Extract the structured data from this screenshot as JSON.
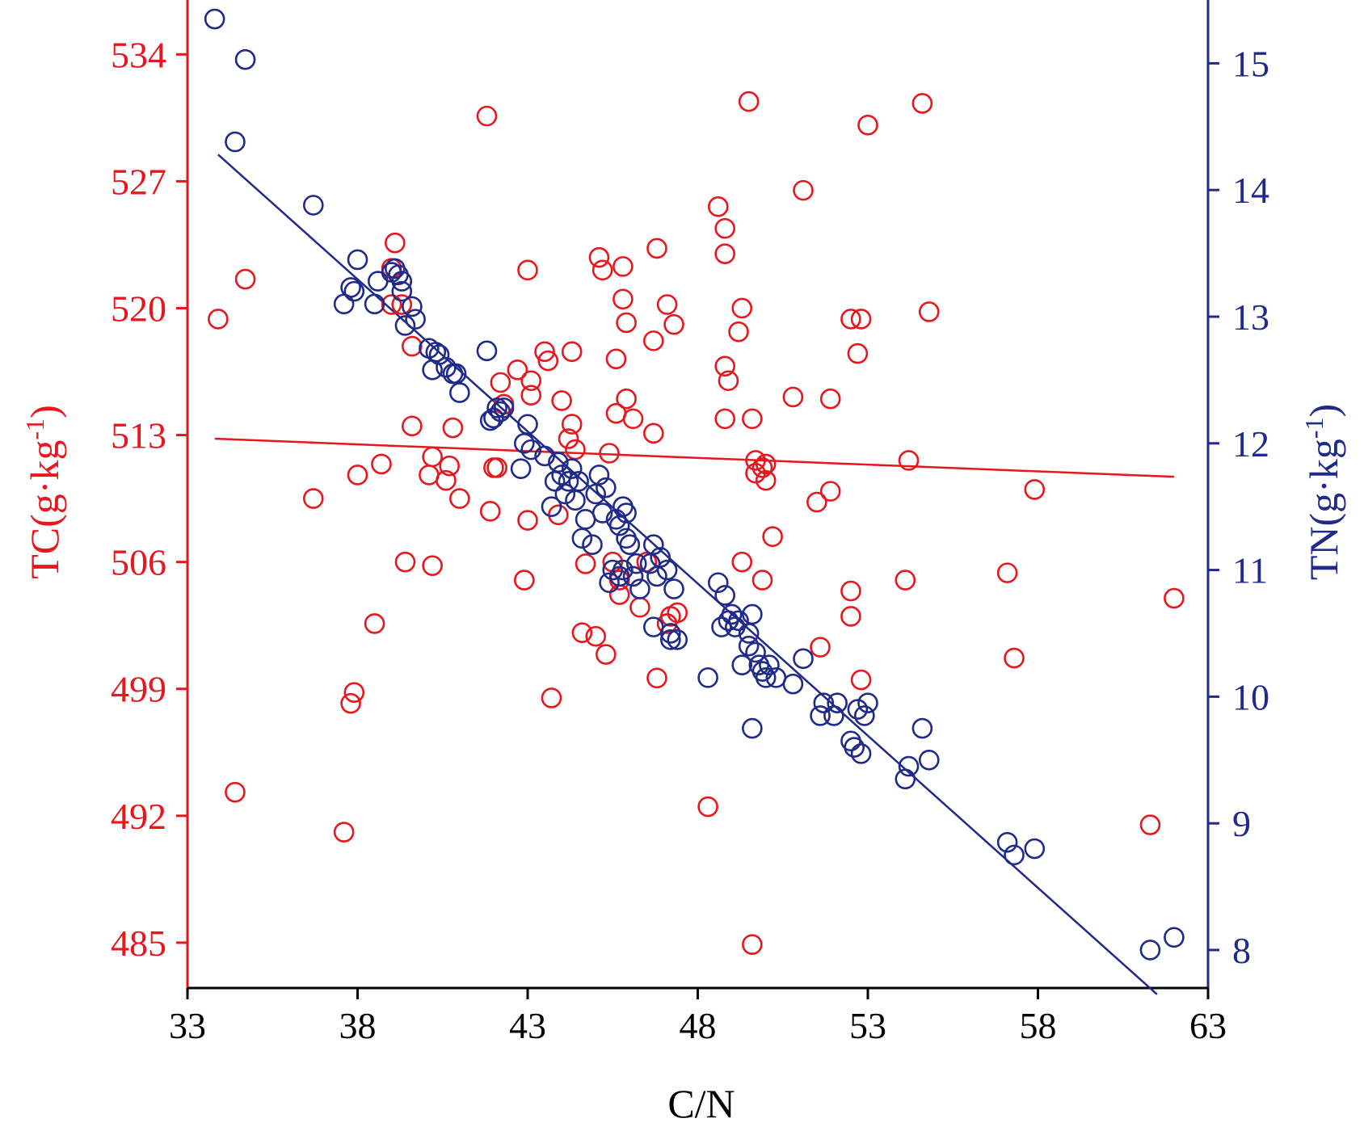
{
  "chart_data": {
    "type": "scatter",
    "xlabel": "C/N",
    "ylabel_left": "TC(g·kg",
    "ylabel_left_sup": "-1",
    "ylabel_left_close": ")",
    "ylabel_right": "TN(g·kg",
    "ylabel_right_sup": "-1",
    "ylabel_right_close": ")",
    "xlim": [
      33,
      63
    ],
    "ylim_left": [
      482.5,
      537
    ],
    "ylim_right": [
      7.7,
      15.5
    ],
    "x_ticks": [
      "33",
      "38",
      "43",
      "48",
      "53",
      "58",
      "63"
    ],
    "y_left_ticks": [
      "485",
      "492",
      "499",
      "506",
      "513",
      "520",
      "527",
      "534"
    ],
    "y_right_ticks": [
      "8",
      "9",
      "10",
      "11",
      "12",
      "13",
      "14",
      "15"
    ],
    "colors": {
      "tc": "#e8161d",
      "tn": "#1f2a8a",
      "axis": "#000000"
    },
    "series": [
      {
        "name": "TC",
        "axis": "left",
        "color": "#e8161d",
        "points": [
          [
            33.9,
            519.4
          ],
          [
            34.4,
            493.3
          ],
          [
            34.7,
            521.6
          ],
          [
            36.7,
            509.5
          ],
          [
            37.6,
            491.1
          ],
          [
            37.8,
            498.2
          ],
          [
            37.9,
            498.8
          ],
          [
            38.0,
            510.8
          ],
          [
            38.5,
            502.6
          ],
          [
            38.7,
            511.4
          ],
          [
            39.1,
            523.6
          ],
          [
            39.0,
            522.2
          ],
          [
            39.0,
            520.2
          ],
          [
            39.3,
            520.2
          ],
          [
            39.4,
            506.0
          ],
          [
            39.6,
            513.5
          ],
          [
            39.6,
            517.9
          ],
          [
            40.1,
            510.8
          ],
          [
            40.2,
            505.8
          ],
          [
            40.2,
            511.8
          ],
          [
            40.6,
            510.5
          ],
          [
            40.7,
            511.3
          ],
          [
            40.8,
            513.4
          ],
          [
            41.0,
            509.5
          ],
          [
            41.8,
            530.6
          ],
          [
            41.9,
            508.8
          ],
          [
            42.0,
            511.2
          ],
          [
            42.1,
            511.2
          ],
          [
            42.2,
            515.9
          ],
          [
            42.3,
            514.7
          ],
          [
            42.7,
            516.6
          ],
          [
            42.9,
            505.0
          ],
          [
            43.0,
            508.3
          ],
          [
            43.0,
            522.1
          ],
          [
            43.1,
            516.0
          ],
          [
            43.1,
            515.2
          ],
          [
            43.5,
            517.6
          ],
          [
            43.6,
            517.1
          ],
          [
            43.7,
            498.5
          ],
          [
            43.9,
            508.6
          ],
          [
            44.0,
            514.9
          ],
          [
            44.3,
            513.6
          ],
          [
            44.3,
            517.6
          ],
          [
            44.2,
            512.8
          ],
          [
            44.4,
            512.2
          ],
          [
            44.6,
            502.1
          ],
          [
            44.7,
            505.9
          ],
          [
            45.0,
            501.9
          ],
          [
            45.1,
            522.8
          ],
          [
            45.2,
            522.1
          ],
          [
            45.4,
            512.0
          ],
          [
            45.3,
            500.9
          ],
          [
            45.5,
            506.0
          ],
          [
            45.6,
            514.2
          ],
          [
            45.6,
            517.2
          ],
          [
            45.7,
            504.2
          ],
          [
            45.7,
            505.0
          ],
          [
            45.8,
            522.3
          ],
          [
            45.8,
            520.5
          ],
          [
            45.9,
            519.2
          ],
          [
            45.9,
            515.0
          ],
          [
            46.1,
            513.9
          ],
          [
            46.3,
            503.5
          ],
          [
            46.5,
            506.0
          ],
          [
            46.7,
            518.2
          ],
          [
            46.7,
            513.1
          ],
          [
            46.8,
            499.6
          ],
          [
            46.8,
            523.3
          ],
          [
            47.1,
            520.2
          ],
          [
            47.1,
            502.6
          ],
          [
            47.2,
            503.0
          ],
          [
            47.3,
            519.1
          ],
          [
            47.4,
            503.2
          ],
          [
            48.3,
            492.5
          ],
          [
            48.6,
            525.6
          ],
          [
            48.8,
            524.4
          ],
          [
            48.8,
            523.0
          ],
          [
            48.8,
            516.8
          ],
          [
            48.8,
            513.9
          ],
          [
            48.9,
            516.0
          ],
          [
            49.2,
            518.7
          ],
          [
            49.3,
            520.0
          ],
          [
            49.3,
            506.0
          ],
          [
            49.5,
            531.4
          ],
          [
            49.6,
            513.9
          ],
          [
            49.6,
            484.9
          ],
          [
            49.7,
            511.6
          ],
          [
            49.7,
            510.9
          ],
          [
            49.9,
            511.2
          ],
          [
            49.9,
            505.0
          ],
          [
            50.0,
            511.4
          ],
          [
            50.0,
            510.5
          ],
          [
            50.2,
            507.4
          ],
          [
            50.8,
            515.1
          ],
          [
            51.1,
            526.5
          ],
          [
            51.6,
            501.3
          ],
          [
            51.5,
            509.3
          ],
          [
            51.9,
            515.0
          ],
          [
            51.9,
            509.9
          ],
          [
            52.5,
            519.4
          ],
          [
            52.5,
            504.4
          ],
          [
            52.5,
            503.0
          ],
          [
            52.7,
            517.5
          ],
          [
            52.8,
            499.5
          ],
          [
            52.8,
            519.4
          ],
          [
            53.0,
            530.1
          ],
          [
            54.1,
            505.0
          ],
          [
            54.2,
            511.6
          ],
          [
            54.6,
            531.3
          ],
          [
            54.8,
            519.8
          ],
          [
            57.1,
            505.4
          ],
          [
            57.3,
            500.7
          ],
          [
            57.9,
            510.0
          ],
          [
            61.3,
            491.5
          ],
          [
            62.0,
            504.0
          ]
        ],
        "trend": [
          [
            33.8,
            512.8
          ],
          [
            62.0,
            510.7
          ]
        ]
      },
      {
        "name": "TN",
        "axis": "right",
        "color": "#1f2a8a",
        "points": [
          [
            33.8,
            15.35
          ],
          [
            34.4,
            14.38
          ],
          [
            34.7,
            15.03
          ],
          [
            36.7,
            13.88
          ],
          [
            37.6,
            13.1
          ],
          [
            37.8,
            13.23
          ],
          [
            37.9,
            13.2
          ],
          [
            38.0,
            13.45
          ],
          [
            38.5,
            13.1
          ],
          [
            38.6,
            13.28
          ],
          [
            39.0,
            13.35
          ],
          [
            39.1,
            13.38
          ],
          [
            39.2,
            13.33
          ],
          [
            39.3,
            13.28
          ],
          [
            39.3,
            13.2
          ],
          [
            39.4,
            12.93
          ],
          [
            39.6,
            13.08
          ],
          [
            39.7,
            12.98
          ],
          [
            40.1,
            12.75
          ],
          [
            40.2,
            12.58
          ],
          [
            40.3,
            12.72
          ],
          [
            40.4,
            12.7
          ],
          [
            40.6,
            12.6
          ],
          [
            40.8,
            12.55
          ],
          [
            40.9,
            12.55
          ],
          [
            41.0,
            12.4
          ],
          [
            41.8,
            12.73
          ],
          [
            41.9,
            12.18
          ],
          [
            42.0,
            12.2
          ],
          [
            42.1,
            12.28
          ],
          [
            42.2,
            12.25
          ],
          [
            42.3,
            12.28
          ],
          [
            42.8,
            11.8
          ],
          [
            42.9,
            12.0
          ],
          [
            43.0,
            12.15
          ],
          [
            43.1,
            11.95
          ],
          [
            43.5,
            11.9
          ],
          [
            43.7,
            11.5
          ],
          [
            43.8,
            11.7
          ],
          [
            43.9,
            11.85
          ],
          [
            44.0,
            11.75
          ],
          [
            44.1,
            11.6
          ],
          [
            44.2,
            11.7
          ],
          [
            44.3,
            11.8
          ],
          [
            44.4,
            11.55
          ],
          [
            44.5,
            11.7
          ],
          [
            44.6,
            11.25
          ],
          [
            44.7,
            11.4
          ],
          [
            44.9,
            11.2
          ],
          [
            45.0,
            11.6
          ],
          [
            45.1,
            11.75
          ],
          [
            45.2,
            11.45
          ],
          [
            45.3,
            11.65
          ],
          [
            45.4,
            10.9
          ],
          [
            45.5,
            11.0
          ],
          [
            45.6,
            11.4
          ],
          [
            45.7,
            11.35
          ],
          [
            45.7,
            10.95
          ],
          [
            45.8,
            11.5
          ],
          [
            45.8,
            11.0
          ],
          [
            45.9,
            11.25
          ],
          [
            45.9,
            11.45
          ],
          [
            46.0,
            11.2
          ],
          [
            46.1,
            10.95
          ],
          [
            46.2,
            11.05
          ],
          [
            46.3,
            10.85
          ],
          [
            46.6,
            11.05
          ],
          [
            46.7,
            11.2
          ],
          [
            46.7,
            10.55
          ],
          [
            46.8,
            10.95
          ],
          [
            46.9,
            11.1
          ],
          [
            47.1,
            11.0
          ],
          [
            47.2,
            10.5
          ],
          [
            47.2,
            10.45
          ],
          [
            47.3,
            10.85
          ],
          [
            47.4,
            10.45
          ],
          [
            48.3,
            10.15
          ],
          [
            48.6,
            10.9
          ],
          [
            48.7,
            10.55
          ],
          [
            48.8,
            10.8
          ],
          [
            48.9,
            10.6
          ],
          [
            49.0,
            10.65
          ],
          [
            49.1,
            10.55
          ],
          [
            49.2,
            10.6
          ],
          [
            49.3,
            10.25
          ],
          [
            49.5,
            10.4
          ],
          [
            49.5,
            10.5
          ],
          [
            49.6,
            9.75
          ],
          [
            49.6,
            10.65
          ],
          [
            49.7,
            10.35
          ],
          [
            49.8,
            10.25
          ],
          [
            49.9,
            10.2
          ],
          [
            50.0,
            10.15
          ],
          [
            50.1,
            10.25
          ],
          [
            50.3,
            10.15
          ],
          [
            50.8,
            10.1
          ],
          [
            51.1,
            10.3
          ],
          [
            51.6,
            9.85
          ],
          [
            51.7,
            9.95
          ],
          [
            52.0,
            9.85
          ],
          [
            52.1,
            9.95
          ],
          [
            52.5,
            9.65
          ],
          [
            52.6,
            9.6
          ],
          [
            52.7,
            9.9
          ],
          [
            52.8,
            9.55
          ],
          [
            52.9,
            9.85
          ],
          [
            53.0,
            9.95
          ],
          [
            54.1,
            9.35
          ],
          [
            54.2,
            9.45
          ],
          [
            54.6,
            9.75
          ],
          [
            54.8,
            9.5
          ],
          [
            57.1,
            8.85
          ],
          [
            57.3,
            8.75
          ],
          [
            57.9,
            8.8
          ],
          [
            61.3,
            8.0
          ],
          [
            62.0,
            8.1
          ]
        ],
        "trend": [
          [
            33.9,
            14.28
          ],
          [
            61.5,
            7.65
          ]
        ]
      }
    ]
  }
}
